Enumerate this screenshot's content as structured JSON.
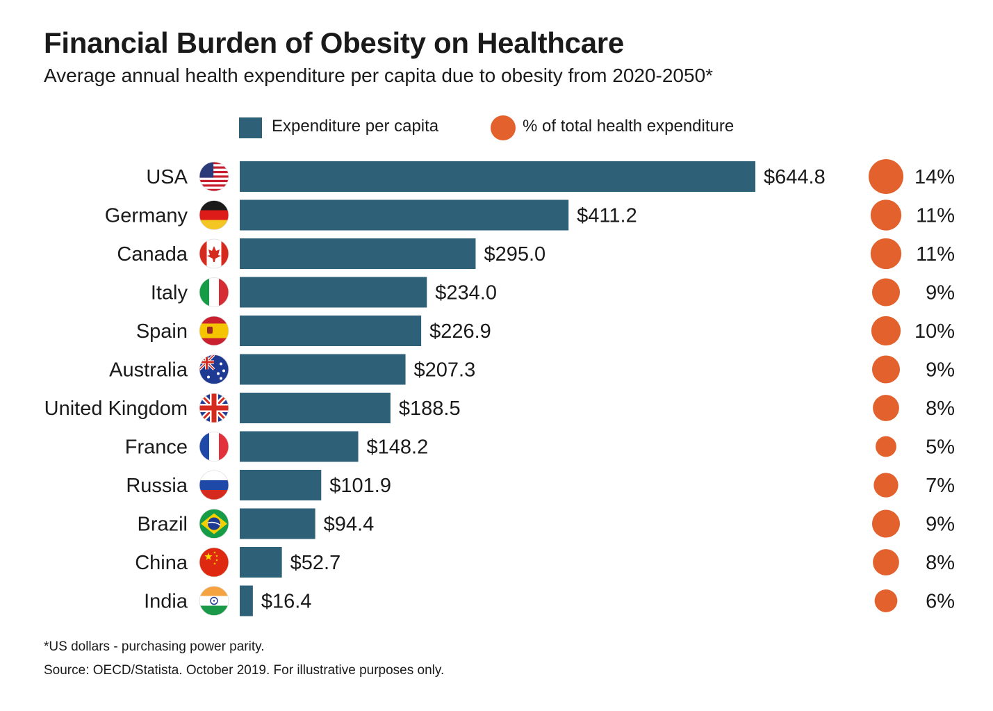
{
  "chart_data": {
    "type": "bar",
    "title": "Financial Burden of Obesity on Healthcare",
    "subtitle": "Average annual health expenditure per capita due to obesity from 2020-2050*",
    "categories": [
      "USA",
      "Germany",
      "Canada",
      "Italy",
      "Spain",
      "Australia",
      "United Kingdom",
      "France",
      "Russia",
      "Brazil",
      "China",
      "India"
    ],
    "series": [
      {
        "name": "Expenditure per capita",
        "values": [
          644.8,
          411.2,
          295.0,
          234.0,
          226.9,
          207.3,
          188.5,
          148.2,
          101.9,
          94.4,
          52.7,
          16.4
        ],
        "labels": [
          "$644.8",
          "$411.2",
          "$295.0",
          "$234.0",
          "$226.9",
          "$207.3",
          "$188.5",
          "$148.2",
          "$101.9",
          "$94.4",
          "$52.7",
          "$16.4"
        ]
      },
      {
        "name": "% of total health expenditure",
        "values": [
          14,
          11,
          11,
          9,
          10,
          9,
          8,
          5,
          7,
          9,
          8,
          6
        ],
        "labels": [
          "14%",
          "11%",
          "11%",
          "9%",
          "10%",
          "9%",
          "8%",
          "5%",
          "7%",
          "9%",
          "8%",
          "6%"
        ]
      }
    ],
    "flag_icons": [
      "usa-flag-icon",
      "germany-flag-icon",
      "canada-flag-icon",
      "italy-flag-icon",
      "spain-flag-icon",
      "australia-flag-icon",
      "united-kingdom-flag-icon",
      "france-flag-icon",
      "russia-flag-icon",
      "brazil-flag-icon",
      "china-flag-icon",
      "india-flag-icon"
    ],
    "xlim": [
      0,
      644.8
    ],
    "orientation": "horizontal",
    "legend": "top-center",
    "grid": false,
    "colors": {
      "bar": "#2e6178",
      "dot": "#e3612d"
    }
  },
  "notes": {
    "footnote": "*US dollars - purchasing power parity.",
    "source": "Source: OECD/Statista. October 2019. For illustrative purposes only."
  }
}
